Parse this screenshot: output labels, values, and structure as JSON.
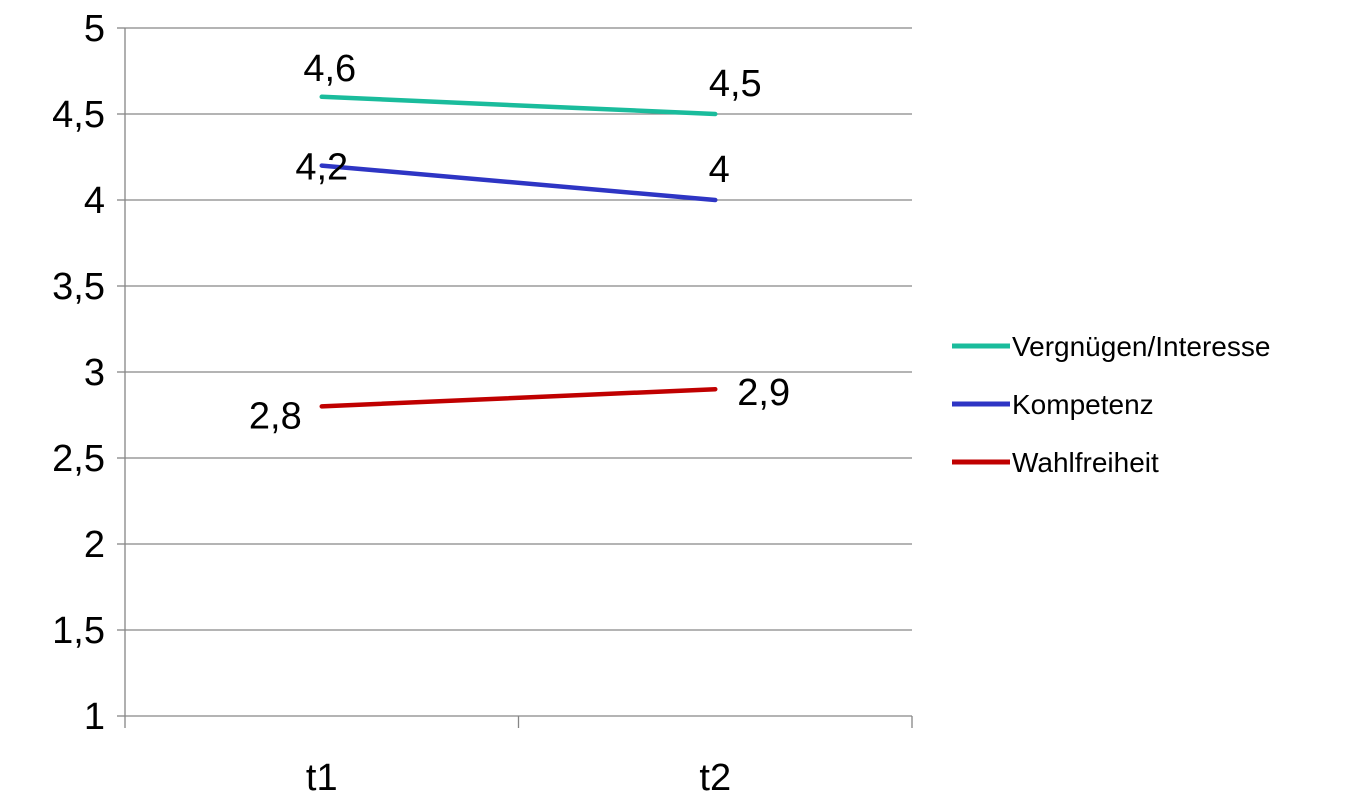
{
  "chart_data": {
    "type": "line",
    "title": "",
    "xlabel": "",
    "ylabel": "",
    "categories": [
      "t1",
      "t2"
    ],
    "ylim": [
      1,
      5
    ],
    "yticks": [
      1,
      1.5,
      2,
      2.5,
      3,
      3.5,
      4,
      4.5,
      5
    ],
    "ytick_labels": [
      "1",
      "1,5",
      "2",
      "2,5",
      "3",
      "3,5",
      "4",
      "4,5",
      "5"
    ],
    "grid": true,
    "legend_position": "right",
    "series": [
      {
        "name": "Vergnügen/Interesse",
        "values": [
          4.6,
          4.5
        ],
        "labels": [
          "4,6",
          "4,5"
        ],
        "color": "#1ABC9C"
      },
      {
        "name": "Kompetenz",
        "values": [
          4.2,
          4.0
        ],
        "labels": [
          "4,2",
          "4"
        ],
        "color": "#2E35C4"
      },
      {
        "name": "Wahlfreiheit",
        "values": [
          2.8,
          2.9
        ],
        "labels": [
          "2,8",
          "2,9"
        ],
        "color": "#C00000"
      }
    ]
  }
}
